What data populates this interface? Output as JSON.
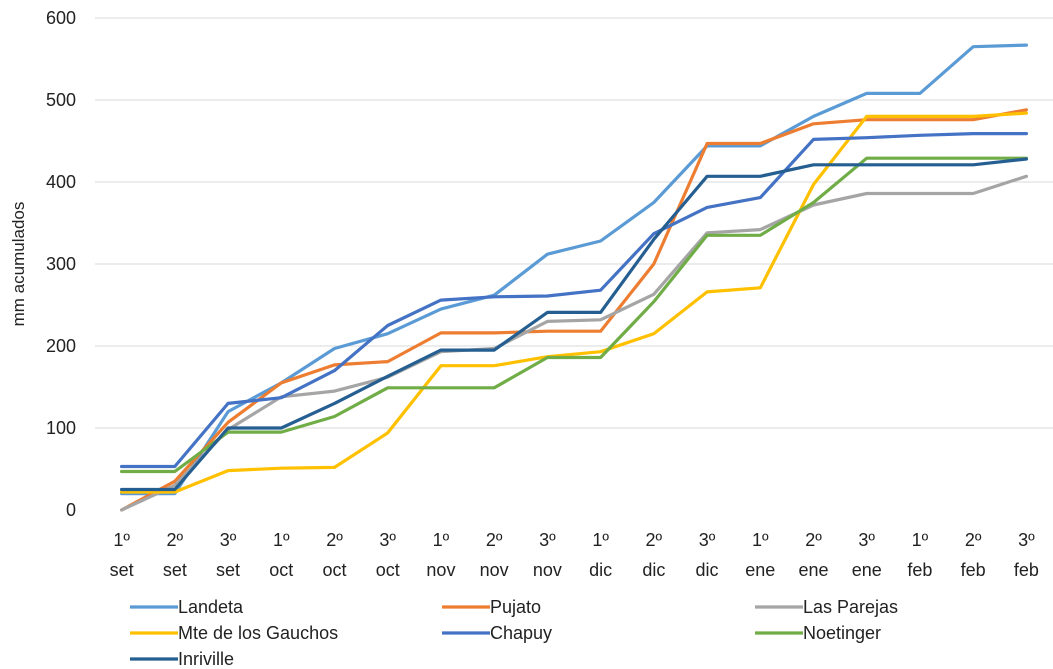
{
  "chart_data": {
    "type": "line",
    "ylabel": "mm acumulados",
    "ylim": [
      0,
      600
    ],
    "yticks": [
      0,
      100,
      200,
      300,
      400,
      500,
      600
    ],
    "grid": true,
    "legend_placement": "bottom",
    "categories": [
      [
        "1º",
        "set"
      ],
      [
        "2º",
        "set"
      ],
      [
        "3º",
        "set"
      ],
      [
        "1º",
        "oct"
      ],
      [
        "2º",
        "oct"
      ],
      [
        "3º",
        "oct"
      ],
      [
        "1º",
        "nov"
      ],
      [
        "2º",
        "nov"
      ],
      [
        "3º",
        "nov"
      ],
      [
        "1º",
        "dic"
      ],
      [
        "2º",
        "dic"
      ],
      [
        "3º",
        "dic"
      ],
      [
        "1º",
        "ene"
      ],
      [
        "2º",
        "ene"
      ],
      [
        "3º",
        "ene"
      ],
      [
        "1º",
        "feb"
      ],
      [
        "2º",
        "feb"
      ],
      [
        "3º",
        "feb"
      ]
    ],
    "series": [
      {
        "name": "Landeta",
        "color": "#5B9BD5",
        "values": [
          20,
          20,
          120,
          155,
          197,
          215,
          245,
          262,
          312,
          328,
          375,
          444,
          444,
          480,
          508,
          508,
          565,
          567
        ]
      },
      {
        "name": "Pujato",
        "color": "#ED7D31",
        "values": [
          0,
          35,
          107,
          155,
          177,
          181,
          216,
          216,
          218,
          218,
          300,
          447,
          447,
          471,
          476,
          476,
          476,
          488
        ]
      },
      {
        "name": "Las Parejas",
        "color": "#A5A5A5",
        "values": [
          0,
          30,
          98,
          138,
          145,
          162,
          193,
          197,
          230,
          232,
          263,
          338,
          342,
          372,
          386,
          386,
          386,
          407
        ]
      },
      {
        "name": "Mte de los Gauchos",
        "color": "#FFC000",
        "values": [
          22,
          22,
          48,
          51,
          52,
          94,
          176,
          176,
          187,
          193,
          215,
          266,
          271,
          397,
          480,
          480,
          480,
          484
        ]
      },
      {
        "name": "Chapuy",
        "color": "#4472C4",
        "values": [
          53,
          53,
          130,
          137,
          170,
          225,
          256,
          260,
          261,
          268,
          337,
          369,
          381,
          452,
          454,
          457,
          459,
          459
        ]
      },
      {
        "name": "Noetinger",
        "color": "#70AD47",
        "values": [
          47,
          47,
          95,
          95,
          114,
          149,
          149,
          149,
          186,
          186,
          254,
          335,
          335,
          375,
          429,
          429,
          429,
          429
        ]
      },
      {
        "name": "Inriville",
        "color": "#255E91",
        "values": [
          25,
          25,
          100,
          100,
          130,
          163,
          195,
          195,
          241,
          241,
          330,
          407,
          407,
          421,
          421,
          421,
          421,
          428
        ]
      }
    ]
  }
}
